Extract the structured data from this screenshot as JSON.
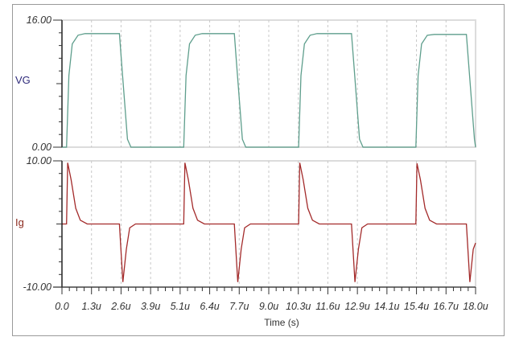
{
  "chart_data": [
    {
      "type": "line",
      "panel": "top",
      "title": "",
      "ylabel": "VG",
      "ylabel_color": "#2e2a7a",
      "series_color": "#5e9e8c",
      "ylim": [
        0.0,
        16.0
      ],
      "ytick_labels": [
        "0.00",
        "16.00"
      ],
      "xlim": [
        0.0,
        18.0
      ],
      "grid": "vertical dashed",
      "series": [
        {
          "name": "VG",
          "x_us": [
            0.0,
            0.2,
            0.3,
            0.45,
            0.7,
            1.0,
            2.5,
            2.6,
            2.85,
            3.0,
            5.3,
            5.4,
            5.55,
            5.8,
            6.1,
            7.5,
            7.6,
            7.85,
            8.0,
            10.3,
            10.4,
            10.55,
            10.8,
            11.1,
            12.6,
            12.7,
            12.95,
            13.1,
            15.4,
            15.5,
            15.65,
            15.9,
            16.2,
            17.6,
            17.7,
            17.95,
            18.0
          ],
          "values": [
            0.0,
            0.0,
            9.0,
            13.0,
            14.1,
            14.3,
            14.3,
            10.5,
            1.0,
            0.0,
            0.0,
            9.0,
            13.0,
            14.1,
            14.3,
            14.3,
            10.5,
            1.0,
            0.0,
            0.0,
            9.0,
            13.0,
            14.1,
            14.3,
            14.3,
            10.5,
            1.0,
            0.0,
            0.0,
            9.0,
            13.0,
            14.1,
            14.2,
            14.2,
            10.5,
            1.0,
            0.0
          ]
        }
      ]
    },
    {
      "type": "line",
      "panel": "bottom",
      "title": "",
      "ylabel": "Ig",
      "ylabel_color": "#8b2a1e",
      "series_color": "#a32a2a",
      "ylim": [
        -10.0,
        10.0
      ],
      "ytick_labels": [
        "-10.00",
        "10.00"
      ],
      "xlim": [
        0.0,
        18.0
      ],
      "grid": "vertical dashed",
      "series": [
        {
          "name": "Ig",
          "x_us": [
            0.0,
            0.2,
            0.25,
            0.4,
            0.6,
            0.8,
            1.1,
            2.5,
            2.55,
            2.65,
            2.8,
            2.95,
            3.2,
            5.3,
            5.35,
            5.5,
            5.7,
            5.9,
            6.2,
            7.5,
            7.55,
            7.65,
            7.8,
            7.95,
            8.2,
            10.3,
            10.35,
            10.5,
            10.7,
            10.9,
            11.2,
            12.6,
            12.65,
            12.75,
            12.9,
            13.05,
            13.3,
            15.4,
            15.45,
            15.6,
            15.8,
            16.0,
            16.3,
            17.6,
            17.65,
            17.75,
            17.9,
            18.0
          ],
          "values": [
            0.0,
            0.0,
            9.7,
            7.0,
            2.5,
            0.6,
            0.0,
            0.0,
            -3.0,
            -9.2,
            -4.0,
            -0.6,
            0.0,
            0.0,
            9.7,
            7.0,
            2.5,
            0.6,
            0.0,
            0.0,
            -3.0,
            -9.2,
            -4.0,
            -0.6,
            0.0,
            0.0,
            9.7,
            7.0,
            2.5,
            0.6,
            0.0,
            0.0,
            -3.0,
            -9.2,
            -4.0,
            -0.6,
            0.0,
            0.0,
            9.6,
            7.0,
            2.5,
            0.6,
            0.0,
            0.0,
            -3.0,
            -9.2,
            -4.0,
            -3.0
          ]
        }
      ]
    }
  ],
  "x_axis": {
    "label": "Time (s)",
    "tick_labels": [
      "0.0",
      "1.3u",
      "2.6u",
      "3.9u",
      "5.1u",
      "6.4u",
      "7.7u",
      "9.0u",
      "10.3u",
      "11.6u",
      "12.9u",
      "14.1u",
      "15.4u",
      "16.7u",
      "18.0u"
    ]
  },
  "panels": {
    "top": {
      "ylabel": "VG",
      "ymax_label": "16.00",
      "ymin_label": "0.00"
    },
    "bottom": {
      "ylabel": "Ig",
      "ymax_label": "10.00",
      "ymin_label": "-10.00"
    }
  }
}
